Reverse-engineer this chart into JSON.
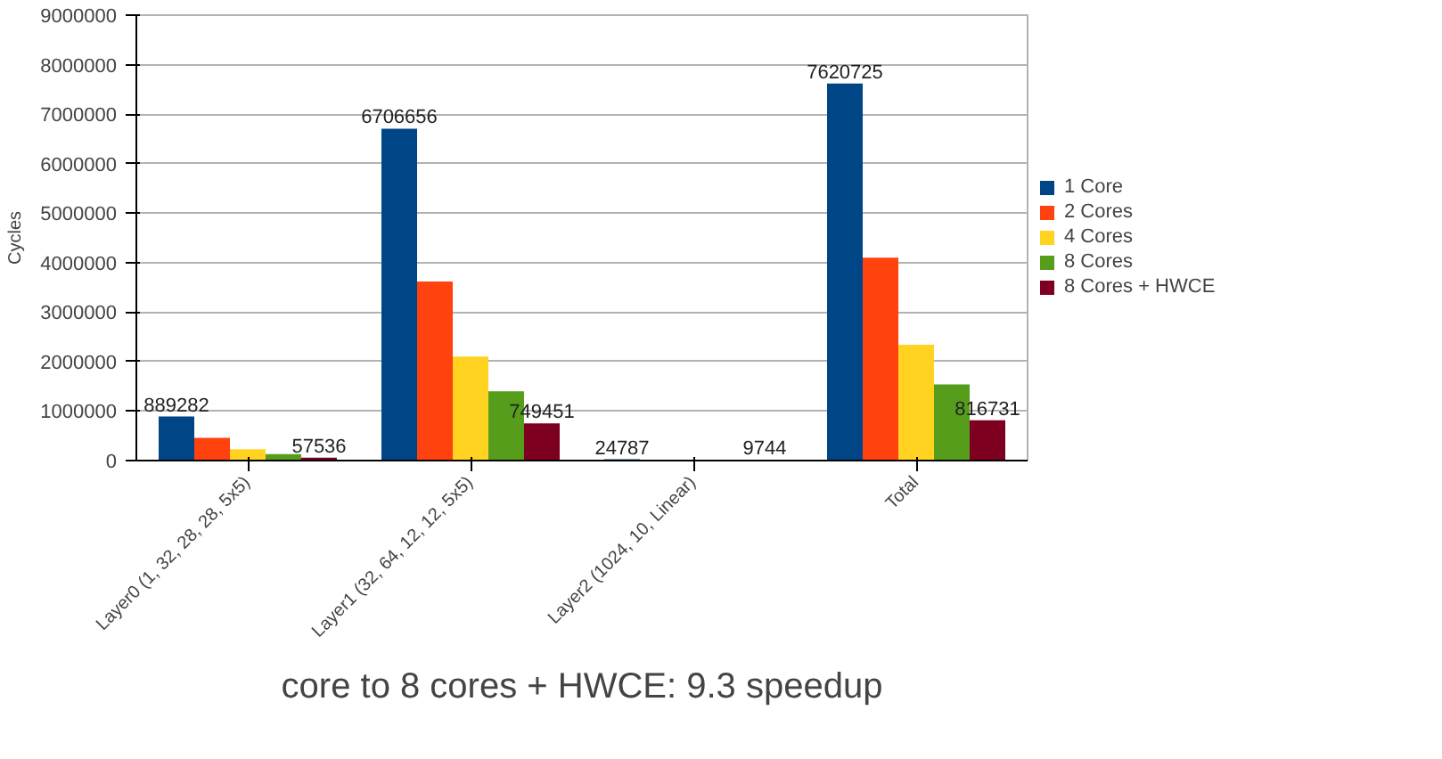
{
  "chart_data": {
    "type": "bar",
    "categories": [
      "Layer0 (1, 32, 28, 28, 5x5)",
      "Layer1 (32, 64, 12, 12, 5x5)",
      "Layer2 (1024, 10, Linear)",
      "Total"
    ],
    "ylabel": "Cycles",
    "series": [
      {
        "name": "1 Core",
        "color": "#004586",
        "values": [
          889282,
          6706656,
          24787,
          7620725
        ],
        "value_labels": [
          "889282",
          "6706656",
          "24787",
          "7620725"
        ]
      },
      {
        "name": "2 Cores",
        "color": "#ff420e",
        "values": [
          460000,
          3620000,
          10000,
          4100000
        ]
      },
      {
        "name": "4 Cores",
        "color": "#ffd320",
        "values": [
          230000,
          2100000,
          10000,
          2340000
        ]
      },
      {
        "name": "8 Cores",
        "color": "#579d1c",
        "values": [
          130000,
          1400000,
          10000,
          1540000
        ]
      },
      {
        "name": "8 Cores + HWCE",
        "color": "#7e0021",
        "values": [
          57536,
          749451,
          9744,
          816731
        ],
        "value_labels": [
          "57536",
          "749451",
          "9744",
          "816731"
        ]
      }
    ],
    "ylim": [
      0,
      9000000
    ],
    "yticks": [
      0,
      1000000,
      2000000,
      3000000,
      4000000,
      5000000,
      6000000,
      7000000,
      8000000,
      9000000
    ],
    "grid": "y",
    "legend": "right",
    "annotations": [
      "core to 8 cores + HWCE: 9.3 speedup"
    ]
  }
}
